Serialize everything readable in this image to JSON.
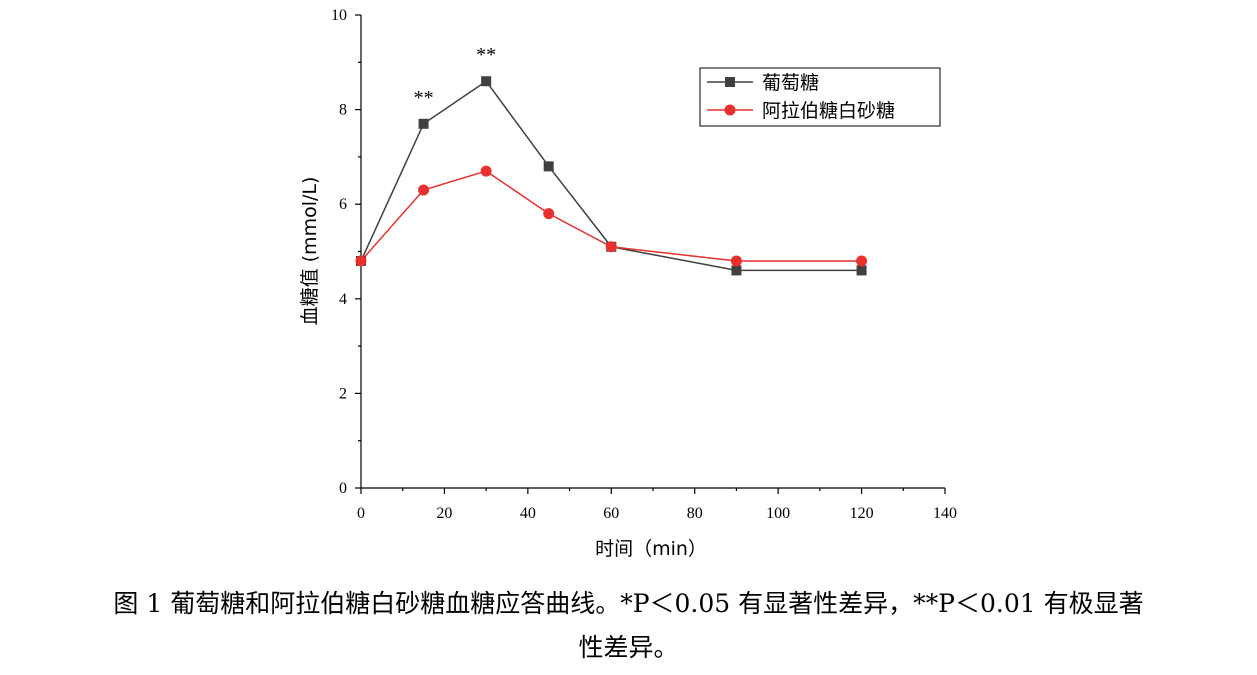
{
  "chart_data": {
    "type": "line",
    "title": "",
    "xlabel": "时间（min）",
    "ylabel": "血糖值 (mmol/L)",
    "xlim": [
      0,
      140
    ],
    "ylim": [
      0,
      10
    ],
    "x_ticks": [
      "0",
      "20",
      "40",
      "60",
      "80",
      "100",
      "120",
      "140"
    ],
    "y_ticks": [
      "0",
      "2",
      "4",
      "6",
      "8",
      "10"
    ],
    "x": [
      0,
      15,
      30,
      45,
      60,
      90,
      120
    ],
    "series": [
      {
        "name": "葡萄糖",
        "color": "#404040",
        "marker": "square",
        "values": [
          4.8,
          7.7,
          8.6,
          6.8,
          5.1,
          4.6,
          4.6
        ]
      },
      {
        "name": "阿拉伯糖白砂糖",
        "color": "#e8302e",
        "marker": "circle",
        "values": [
          4.8,
          6.3,
          6.7,
          5.8,
          5.1,
          4.8,
          4.8
        ]
      }
    ],
    "annotations": [
      {
        "x": 15,
        "text": "**"
      },
      {
        "x": 30,
        "text": "**"
      }
    ],
    "legend_position": "top-right",
    "grid": false
  },
  "caption": {
    "line1": "图 1  葡萄糖和阿拉伯糖白砂糖血糖应答曲线。*P＜0.05 有显著性差异，**P＜0.01 有极显著",
    "line2": "性差异。"
  }
}
